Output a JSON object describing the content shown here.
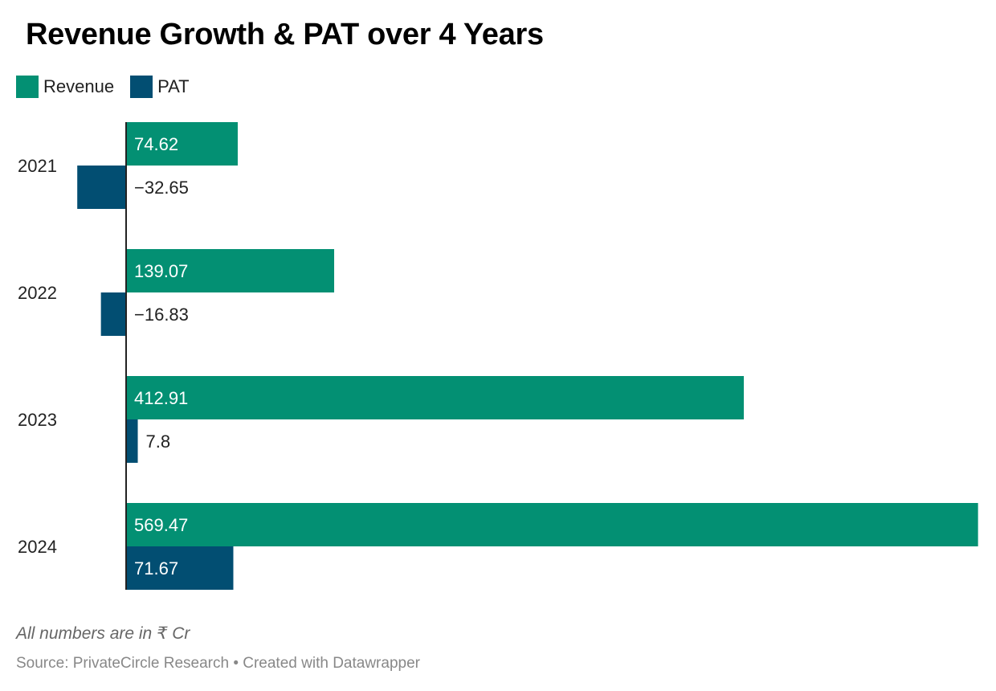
{
  "title": "Revenue Growth & PAT over 4 Years",
  "legend": [
    {
      "label": "Revenue",
      "color": "#039073"
    },
    {
      "label": "PAT",
      "color": "#024e72"
    }
  ],
  "footnote": "All numbers are in ₹ Cr",
  "source": "Source: PrivateCircle Research • Created with Datawrapper",
  "chart_data": {
    "type": "bar",
    "orientation": "horizontal",
    "title": "Revenue Growth & PAT over 4 Years",
    "xlabel": "",
    "ylabel": "",
    "categories": [
      "2021",
      "2022",
      "2023",
      "2024"
    ],
    "series": [
      {
        "name": "Revenue",
        "color": "#039073",
        "values": [
          74.62,
          139.07,
          412.91,
          569.47
        ],
        "labels": [
          "74.62",
          "139.07",
          "412.91",
          "569.47"
        ]
      },
      {
        "name": "PAT",
        "color": "#024e72",
        "values": [
          -32.65,
          -16.83,
          7.8,
          71.67
        ],
        "labels": [
          "−32.65",
          "−16.83",
          "7.8",
          "71.67"
        ]
      }
    ],
    "xlim": [
      -32.65,
      569.47
    ],
    "grid": false,
    "legend_position": "top-left"
  }
}
